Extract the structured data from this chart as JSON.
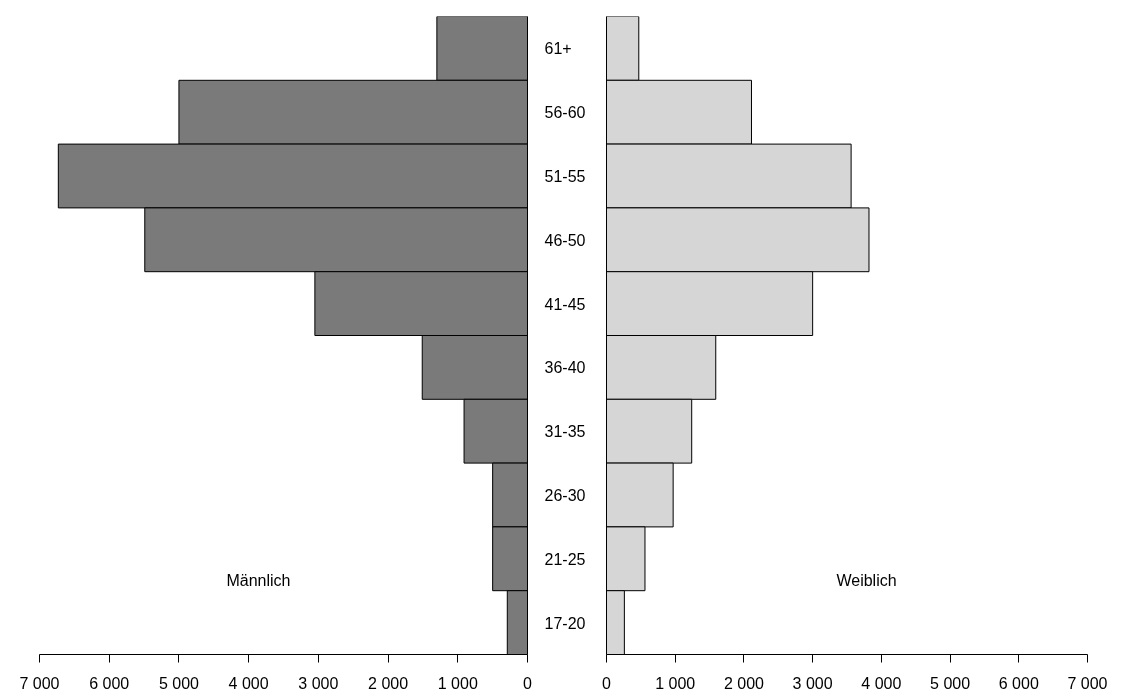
{
  "chart_data": [
    {
      "type": "bar",
      "orientation": "horizontal",
      "categories": [
        "61+",
        "56-60",
        "51-55",
        "46-50",
        "41-45",
        "36-40",
        "31-35",
        "26-30",
        "21-25",
        "17-20"
      ],
      "values": [
        1300,
        5000,
        6730,
        5490,
        3050,
        1510,
        910,
        500,
        500,
        290
      ],
      "color": "#7a7a7a",
      "xlim": [
        7000,
        0
      ],
      "xticks": [
        {
          "value": 7000,
          "label": "7 000"
        },
        {
          "value": 6000,
          "label": "6 000"
        },
        {
          "value": 5000,
          "label": "5 000"
        },
        {
          "value": 4000,
          "label": "4 000"
        },
        {
          "value": 3000,
          "label": "3 000"
        },
        {
          "value": 2000,
          "label": "2 000"
        },
        {
          "value": 1000,
          "label": "1 000"
        },
        0
      ],
      "annotations": [
        "Männlich"
      ],
      "grid": false
    },
    {
      "type": "bar",
      "orientation": "horizontal",
      "values": [
        470,
        2110,
        3560,
        3820,
        3000,
        1590,
        1240,
        970,
        560,
        260
      ],
      "color": "#d6d6d6",
      "xlim": [
        0,
        7000
      ],
      "xticks": [
        0,
        {
          "value": 1000,
          "label": "1 000"
        },
        {
          "value": 2000,
          "label": "2 000"
        },
        {
          "value": 3000,
          "label": "3 000"
        },
        {
          "value": 4000,
          "label": "4 000"
        },
        {
          "value": 5000,
          "label": "5 000"
        },
        {
          "value": 6000,
          "label": "6 000"
        },
        {
          "value": 7000,
          "label": "7 000"
        }
      ],
      "annotations": [
        "Weiblich"
      ],
      "grid": false
    }
  ]
}
